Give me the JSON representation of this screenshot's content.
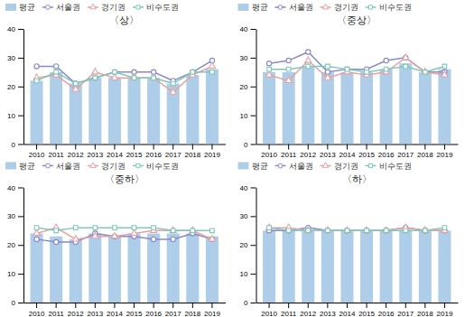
{
  "chart_data": [
    {
      "type": "bar",
      "title": "〈상〉",
      "categories": [
        "2010",
        "2011",
        "2012",
        "2013",
        "2014",
        "2015",
        "2016",
        "2017",
        "2018",
        "2019"
      ],
      "series": [
        {
          "name": "평균",
          "type": "bar",
          "color": "#aecde8",
          "values": [
            22,
            25,
            21,
            23,
            23,
            23,
            23,
            21,
            24,
            26
          ]
        },
        {
          "name": "서울권",
          "type": "line",
          "marker": "circle",
          "color": "#8888cc",
          "values": [
            27,
            27,
            21,
            23,
            25,
            25,
            25,
            22,
            25,
            29
          ]
        },
        {
          "name": "경기권",
          "type": "line",
          "marker": "triangle",
          "color": "#e8a0a0",
          "values": [
            23,
            24,
            19,
            25,
            23,
            23,
            23,
            18,
            24,
            27
          ]
        },
        {
          "name": "비수도권",
          "type": "line",
          "marker": "square",
          "color": "#7ec8b8",
          "values": [
            22,
            25,
            21,
            23,
            25,
            23,
            23,
            21,
            25,
            25
          ]
        }
      ],
      "ylim": [
        0,
        40
      ],
      "yticks": [
        0,
        10,
        20,
        30,
        40
      ],
      "grid": false,
      "legend": "upper left"
    },
    {
      "type": "bar",
      "title": "〈중상〉",
      "categories": [
        "2010",
        "2011",
        "2012",
        "2013",
        "2014",
        "2015",
        "2016",
        "2017",
        "2018",
        "2019"
      ],
      "series": [
        {
          "name": "평균",
          "type": "bar",
          "color": "#aecde8",
          "values": [
            25,
            25,
            27,
            25,
            25,
            25,
            26,
            28,
            25,
            26
          ]
        },
        {
          "name": "서울권",
          "type": "line",
          "marker": "circle",
          "color": "#8888cc",
          "values": [
            28,
            29,
            32,
            25,
            26,
            26,
            29,
            30,
            25,
            25
          ]
        },
        {
          "name": "경기권",
          "type": "line",
          "marker": "triangle",
          "color": "#e8a0a0",
          "values": [
            24,
            22,
            29,
            23,
            25,
            24,
            25,
            30,
            25,
            24
          ]
        },
        {
          "name": "비수도권",
          "type": "line",
          "marker": "square",
          "color": "#7ec8b8",
          "values": [
            26,
            26,
            27,
            27,
            26,
            25,
            26,
            27,
            25,
            27
          ]
        }
      ],
      "ylim": [
        0,
        40
      ],
      "yticks": [
        0,
        10,
        20,
        30,
        40
      ],
      "grid": false,
      "legend": "upper left"
    },
    {
      "type": "bar",
      "title": "〈중하〉",
      "categories": [
        "2010",
        "2011",
        "2012",
        "2013",
        "2014",
        "2015",
        "2016",
        "2017",
        "2018",
        "2019"
      ],
      "series": [
        {
          "name": "평균",
          "type": "bar",
          "color": "#aecde8",
          "values": [
            24,
            23,
            22,
            24,
            23,
            24,
            24,
            24,
            24,
            23
          ]
        },
        {
          "name": "서울권",
          "type": "line",
          "marker": "circle",
          "color": "#8888cc",
          "values": [
            22,
            21,
            21,
            24,
            23,
            23,
            22,
            22,
            24,
            22
          ]
        },
        {
          "name": "경기권",
          "type": "line",
          "marker": "triangle",
          "color": "#e8a0a0",
          "values": [
            24,
            26,
            22,
            23,
            23,
            24,
            25,
            25,
            25,
            22
          ]
        },
        {
          "name": "비수도권",
          "type": "line",
          "marker": "square",
          "color": "#7ec8b8",
          "values": [
            26,
            25,
            26,
            26,
            26,
            26,
            26,
            25,
            25,
            25
          ]
        }
      ],
      "ylim": [
        0,
        40
      ],
      "yticks": [
        0,
        10,
        20,
        30,
        40
      ],
      "grid": false,
      "legend": "upper left"
    },
    {
      "type": "bar",
      "title": "〈하〉",
      "categories": [
        "2010",
        "2011",
        "2012",
        "2013",
        "2014",
        "2015",
        "2016",
        "2017",
        "2018",
        "2019"
      ],
      "series": [
        {
          "name": "평균",
          "type": "bar",
          "color": "#aecde8",
          "values": [
            25,
            25,
            25,
            25,
            25,
            25,
            25,
            25,
            25,
            25
          ]
        },
        {
          "name": "서울권",
          "type": "line",
          "marker": "circle",
          "color": "#8888cc",
          "values": [
            25,
            25,
            26,
            25,
            25,
            25,
            25,
            26,
            25,
            25
          ]
        },
        {
          "name": "경기권",
          "type": "line",
          "marker": "triangle",
          "color": "#e8a0a0",
          "values": [
            26,
            26,
            25,
            25,
            25,
            25,
            25,
            26,
            25,
            25
          ]
        },
        {
          "name": "비수도권",
          "type": "line",
          "marker": "square",
          "color": "#7ec8b8",
          "values": [
            26,
            25,
            25,
            25,
            25,
            25,
            25,
            25,
            25,
            26
          ]
        }
      ],
      "ylim": [
        0,
        40
      ],
      "yticks": [
        0,
        10,
        20,
        30,
        40
      ],
      "grid": false,
      "legend": "upper left"
    }
  ]
}
